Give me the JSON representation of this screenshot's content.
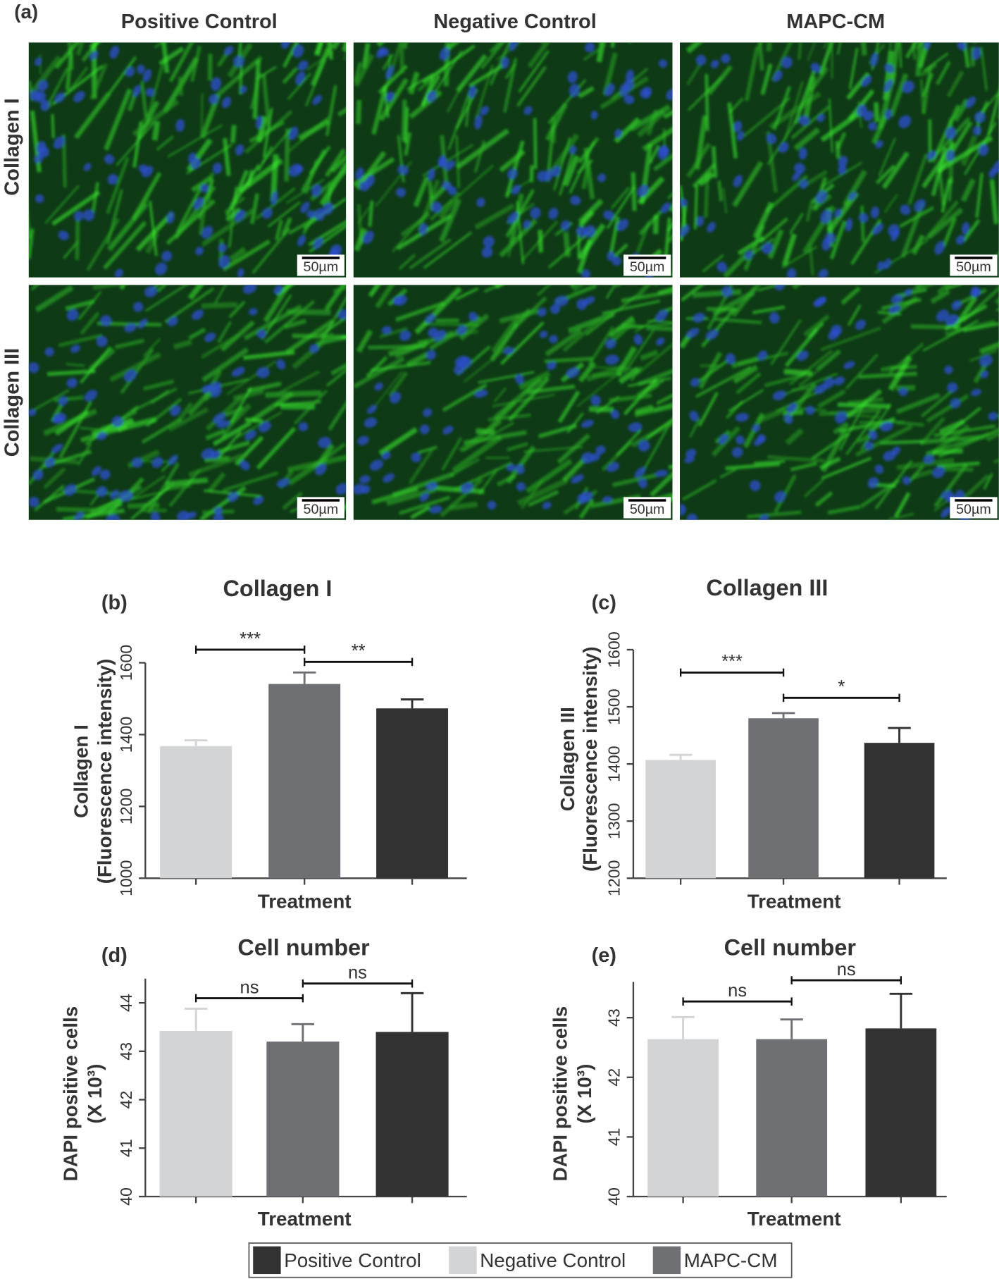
{
  "panel_a": {
    "label": "(a)",
    "columns": [
      "Positive Control",
      "Negative Control",
      "MAPC-CM"
    ],
    "rows": [
      "Collagen I",
      "Collagen III"
    ],
    "scale_bar": "50µm"
  },
  "chart_data": [
    {
      "type": "bar",
      "panel": "(b)",
      "title": "Collagen I",
      "ylabel": [
        "Collagen I",
        "(Fluorescence intensity)"
      ],
      "xlabel": "Treatment",
      "values": [
        1368,
        1541,
        1473
      ],
      "errors": [
        16,
        32,
        25
      ],
      "colors": [
        "#d3d4d6",
        "#6f7074",
        "#323233"
      ],
      "ylim": [
        1000,
        1600
      ],
      "yticks": [
        1000,
        1200,
        1400,
        1600
      ],
      "annotations": [
        "***",
        "**"
      ]
    },
    {
      "type": "bar",
      "panel": "(c)",
      "title": "Collagen III",
      "ylabel": [
        "Collagen III",
        "(Fluorescence intensity)"
      ],
      "xlabel": "Treatment",
      "values": [
        1407,
        1480,
        1437
      ],
      "errors": [
        9,
        9,
        26
      ],
      "colors": [
        "#d3d4d6",
        "#6f7074",
        "#323233"
      ],
      "ylim": [
        1200,
        1600
      ],
      "yticks": [
        1200,
        1300,
        1400,
        1500,
        1600
      ],
      "annotations": [
        "***",
        "*"
      ]
    },
    {
      "type": "bar",
      "panel": "(d)",
      "title": "Cell number",
      "ylabel": [
        "DAPI positive cells",
        "(X 10³)"
      ],
      "xlabel": "Treatment",
      "values": [
        43.42,
        43.2,
        43.4
      ],
      "errors": [
        0.46,
        0.36,
        0.8
      ],
      "colors": [
        "#d3d4d6",
        "#6f7074",
        "#323233"
      ],
      "ylim": [
        40,
        44.5
      ],
      "yticks": [
        40,
        41,
        42,
        43,
        44
      ],
      "annotations": [
        "ns",
        "ns"
      ]
    },
    {
      "type": "bar",
      "panel": "(e)",
      "title": "Cell number",
      "ylabel": [
        "DAPI positive cells",
        "(X 10³)"
      ],
      "xlabel": "Treatment",
      "values": [
        42.64,
        42.64,
        42.82
      ],
      "errors": [
        0.37,
        0.33,
        0.58
      ],
      "colors": [
        "#d3d4d6",
        "#6f7074",
        "#323233"
      ],
      "ylim": [
        40,
        43.6
      ],
      "yticks": [
        40,
        41,
        42,
        43
      ],
      "annotations": [
        "ns",
        "ns"
      ]
    }
  ],
  "legend": {
    "items": [
      {
        "name": "Positive Control",
        "color": "#323233"
      },
      {
        "name": "Negative Control",
        "color": "#d3d4d6"
      },
      {
        "name": "MAPC-CM",
        "color": "#6f7074"
      }
    ]
  }
}
